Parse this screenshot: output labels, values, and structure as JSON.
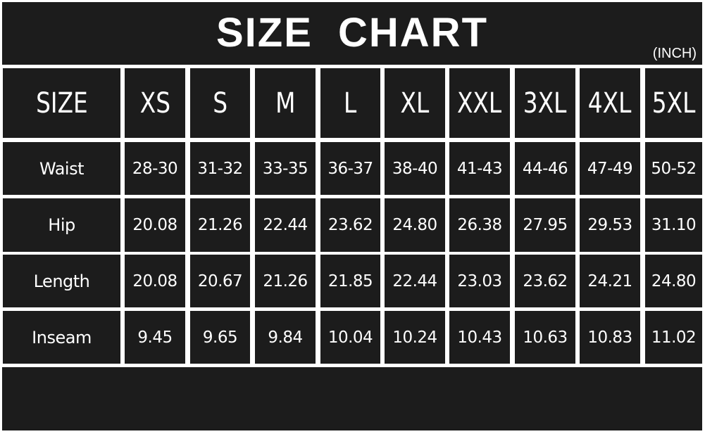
{
  "title": "SIZE CHART",
  "unit": "(INCH)",
  "colors": {
    "background": "#1c1c1c",
    "text": "#ffffff",
    "grid": "#ffffff"
  },
  "chart_data": {
    "type": "table",
    "title": "SIZE CHART",
    "unit": "(INCH)",
    "header_label": "SIZE",
    "columns": [
      "XS",
      "S",
      "M",
      "L",
      "XL",
      "XXL",
      "3XL",
      "4XL",
      "5XL"
    ],
    "rows": [
      {
        "label": "Waist",
        "values": [
          "28-30",
          "31-32",
          "33-35",
          "36-37",
          "38-40",
          "41-43",
          "44-46",
          "47-49",
          "50-52"
        ]
      },
      {
        "label": "Hip",
        "values": [
          "20.08",
          "21.26",
          "22.44",
          "23.62",
          "24.80",
          "26.38",
          "27.95",
          "29.53",
          "31.10"
        ]
      },
      {
        "label": "Length",
        "values": [
          "20.08",
          "20.67",
          "21.26",
          "21.85",
          "22.44",
          "23.03",
          "23.62",
          "24.21",
          "24.80"
        ]
      },
      {
        "label": "Inseam",
        "values": [
          "9.45",
          "9.65",
          "9.84",
          "10.04",
          "10.24",
          "10.43",
          "10.63",
          "10.83",
          "11.02"
        ]
      }
    ]
  }
}
